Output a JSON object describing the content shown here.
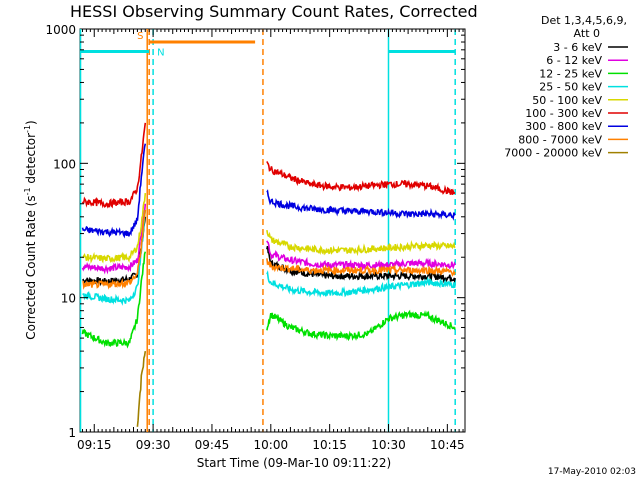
{
  "chart_data": {
    "type": "line",
    "title": "HESSI Observing Summary Count Rates, Corrected",
    "xlabel": "Start Time (09-Mar-10 09:11:22)",
    "ylabel": "Corrected Count Rate (s",
    "ylabel_sup1": "-1",
    "ylabel_mid": " detector",
    "ylabel_sup2": "-1",
    "ylabel_end": ")",
    "yscale": "log",
    "ylim": [
      1,
      1000
    ],
    "xlim": [
      "09:11:22",
      "10:49:30"
    ],
    "x_ticks": [
      "09:15",
      "09:30",
      "09:45",
      "10:00",
      "10:15",
      "10:30",
      "10:45"
    ],
    "y_ticks": [
      "1",
      "10",
      "100",
      "1000"
    ],
    "legend_header": [
      "Det 1,3,4,5,6,9,",
      "Att 0"
    ],
    "legend_position": "top-right outside",
    "series": [
      {
        "name": "3 - 6 keV",
        "color": "#000000",
        "segments": [
          {
            "x": [
              "09:12",
              "09:18",
              "09:24",
              "09:26",
              "09:27",
              "09:28"
            ],
            "y": [
              13.5,
              13.2,
              13.8,
              15,
              24,
              40
            ]
          },
          {
            "x": [
              "09:59",
              "10:00",
              "10:05",
              "10:10",
              "10:15",
              "10:20",
              "10:25",
              "10:30",
              "10:35",
              "10:40",
              "10:47"
            ],
            "y": [
              24,
              18,
              16,
              15,
              14.5,
              14.5,
              14.5,
              14.5,
              14.5,
              14.5,
              14
            ]
          }
        ]
      },
      {
        "name": "6 - 12 keV",
        "color": "#e000e0",
        "segments": [
          {
            "x": [
              "09:12",
              "09:18",
              "09:24",
              "09:26",
              "09:27",
              "09:28"
            ],
            "y": [
              17,
              16.5,
              17,
              19,
              30,
              50
            ]
          },
          {
            "x": [
              "09:59",
              "10:00",
              "10:05",
              "10:10",
              "10:15",
              "10:20",
              "10:25",
              "10:30",
              "10:35",
              "10:40",
              "10:47"
            ],
            "y": [
              28,
              21,
              19,
              18,
              17.5,
              17.5,
              17.5,
              17.5,
              18,
              18,
              17.5
            ]
          }
        ]
      },
      {
        "name": "12 - 25 keV",
        "color": "#00e000",
        "segments": [
          {
            "x": [
              "09:12",
              "09:18",
              "09:24",
              "09:26",
              "09:27",
              "09:28"
            ],
            "y": [
              5.5,
              4.6,
              4.6,
              7,
              13,
              22
            ]
          },
          {
            "x": [
              "09:59",
              "10:00",
              "10:05",
              "10:10",
              "10:15",
              "10:20",
              "10:25",
              "10:30",
              "10:35",
              "10:40",
              "10:47"
            ],
            "y": [
              6,
              7.5,
              6,
              5.4,
              5.2,
              5.2,
              5.4,
              7,
              7.5,
              7.3,
              6
            ]
          }
        ]
      },
      {
        "name": "25 - 50 keV",
        "color": "#00e0e0",
        "segments": [
          {
            "x": [
              "09:12",
              "09:18",
              "09:24",
              "09:26",
              "09:27",
              "09:28"
            ],
            "y": [
              10.5,
              9.8,
              9.5,
              12,
              22,
              45
            ]
          },
          {
            "x": [
              "09:59",
              "10:00",
              "10:05",
              "10:10",
              "10:15",
              "10:20",
              "10:25",
              "10:30",
              "10:35",
              "10:40",
              "10:47"
            ],
            "y": [
              15,
              13,
              11.5,
              11,
              10.8,
              11,
              11.5,
              12,
              12.5,
              13,
              12.5
            ]
          }
        ]
      },
      {
        "name": "50 - 100 keV",
        "color": "#d8d800",
        "segments": [
          {
            "x": [
              "09:12",
              "09:18",
              "09:24",
              "09:26",
              "09:27",
              "09:28"
            ],
            "y": [
              20,
              19.5,
              20,
              24,
              35,
              60
            ]
          },
          {
            "x": [
              "09:59",
              "10:00",
              "10:05",
              "10:10",
              "10:15",
              "10:20",
              "10:25",
              "10:30",
              "10:35",
              "10:40",
              "10:47"
            ],
            "y": [
              32,
              27,
              24,
              23,
              22.5,
              22.5,
              23,
              23.5,
              24,
              24.5,
              24
            ]
          }
        ]
      },
      {
        "name": "100 - 300 keV",
        "color": "#e00000",
        "segments": [
          {
            "x": [
              "09:12",
              "09:18",
              "09:24",
              "09:26",
              "09:27",
              "09:28"
            ],
            "y": [
              52,
              50,
              52,
              65,
              110,
              200
            ]
          },
          {
            "x": [
              "09:59",
              "10:00",
              "10:05",
              "10:10",
              "10:15",
              "10:20",
              "10:25",
              "10:30",
              "10:35",
              "10:40",
              "10:47"
            ],
            "y": [
              100,
              90,
              78,
              70,
              67,
              66,
              68,
              70,
              70,
              68,
              60
            ]
          }
        ]
      },
      {
        "name": "300 - 800 keV",
        "color": "#0000e0",
        "segments": [
          {
            "x": [
              "09:12",
              "09:18",
              "09:24",
              "09:26",
              "09:27",
              "09:28"
            ],
            "y": [
              32,
              31,
              30,
              38,
              80,
              140
            ]
          },
          {
            "x": [
              "09:59",
              "10:00",
              "10:05",
              "10:10",
              "10:15",
              "10:20",
              "10:25",
              "10:30",
              "10:35",
              "10:40",
              "10:47"
            ],
            "y": [
              60,
              52,
              48,
              46,
              45,
              44,
              44,
              43,
              42,
              42,
              41
            ]
          }
        ]
      },
      {
        "name": "800 - 7000 keV",
        "color": "#ff8000",
        "segments": [
          {
            "x": [
              "09:12",
              "09:18",
              "09:24",
              "09:26",
              "09:27",
              "09:28"
            ],
            "y": [
              12.5,
              12.5,
              13,
              15,
              24,
              45
            ]
          },
          {
            "x": [
              "09:59",
              "10:00",
              "10:05",
              "10:10",
              "10:15",
              "10:20",
              "10:25",
              "10:30",
              "10:35",
              "10:40",
              "10:47"
            ],
            "y": [
              19,
              17,
              16.5,
              16,
              16,
              16,
              16,
              16,
              16,
              16,
              15.5
            ]
          }
        ]
      },
      {
        "name": "7000 - 20000 keV",
        "color": "#a08000",
        "segments": [
          {
            "x": [
              "09:26",
              "09:27",
              "09:28"
            ],
            "y": [
              1.05,
              2.5,
              4
            ]
          }
        ]
      }
    ],
    "annotations": [
      {
        "label": "S",
        "color": "#ff8000",
        "type": "bar",
        "x_start": "09:29",
        "x_end": "09:56",
        "y": 800
      },
      {
        "label": "N",
        "color": "#00e0e0",
        "type": "bar",
        "x_start": "09:11:22",
        "x_end": "09:29",
        "y": 680
      },
      {
        "label": "",
        "color": "#00e0e0",
        "type": "bar",
        "x_start": "10:30",
        "x_end": "10:47",
        "y": 680
      }
    ],
    "vlines": [
      {
        "x": "09:11:30",
        "color": "#00e0e0",
        "style": "solid"
      },
      {
        "x": "09:28:30",
        "color": "#ff8000",
        "style": "solid"
      },
      {
        "x": "09:29",
        "color": "#ff8000",
        "style": "dashed"
      },
      {
        "x": "09:30",
        "color": "#00e0e0",
        "style": "dashed"
      },
      {
        "x": "09:58",
        "color": "#ff8000",
        "style": "dashed"
      },
      {
        "x": "10:30",
        "color": "#00e0e0",
        "style": "solid"
      },
      {
        "x": "10:47",
        "color": "#00e0e0",
        "style": "dashed"
      }
    ],
    "grid": false
  },
  "timestamp": "17-May-2010 02:03"
}
